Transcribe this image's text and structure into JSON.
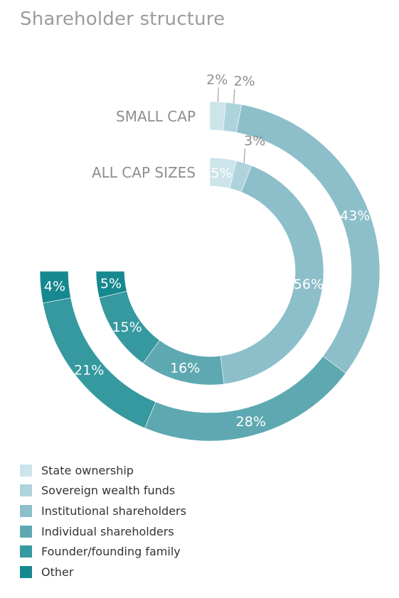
{
  "title": "Shareholder structure",
  "colors": {
    "state": "#cce4ea",
    "sovereign": "#aed3dc",
    "institutional": "#8cbfca",
    "individual": "#5ea9b1",
    "founder": "#35999f",
    "other": "#16888f"
  },
  "legend": [
    {
      "label": "State ownership",
      "key": "state"
    },
    {
      "label": "Sovereign wealth funds",
      "key": "sovereign"
    },
    {
      "label": "Institutional shareholders",
      "key": "institutional"
    },
    {
      "label": "Individual shareholders",
      "key": "individual"
    },
    {
      "label": "Founder/founding family",
      "key": "founder"
    },
    {
      "label": "Other",
      "key": "other"
    }
  ],
  "chart_data": {
    "type": "radial-bar",
    "title": "Shareholder structure",
    "span_degrees": 270,
    "categories": [
      "State ownership",
      "Sovereign wealth funds",
      "Institutional shareholders",
      "Individual shareholders",
      "Founder/founding family",
      "Other"
    ],
    "series": [
      {
        "name": "SMALL CAP",
        "values": [
          2,
          2,
          43,
          28,
          21,
          4
        ],
        "labels": [
          "2%",
          "2%",
          "43%",
          "28%",
          "21%",
          "4%"
        ]
      },
      {
        "name": "ALL CAP SIZES",
        "values": [
          5,
          3,
          56,
          16,
          15,
          5
        ],
        "labels": [
          "5%",
          "3%",
          "56%",
          "16%",
          "15%",
          "5%"
        ]
      }
    ]
  }
}
